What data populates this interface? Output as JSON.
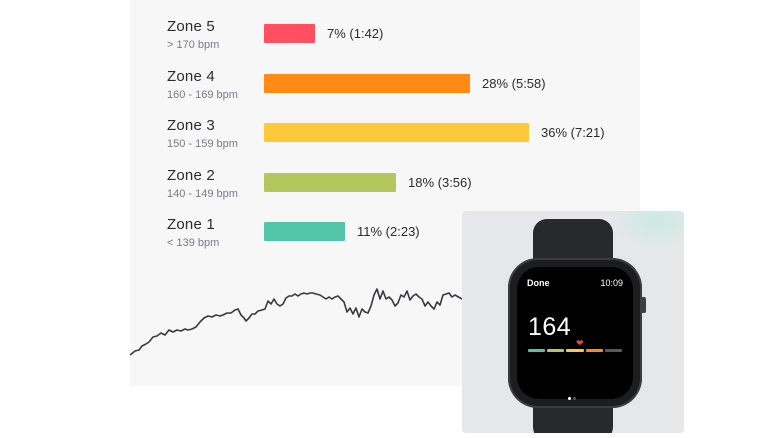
{
  "zones": [
    {
      "name": "Zone 5",
      "range": "> 170 bpm",
      "label": "7% (1:42)",
      "percent": 7,
      "color": "#ff4f60"
    },
    {
      "name": "Zone 4",
      "range": "160 - 169 bpm",
      "label": "28% (5:58)",
      "percent": 28,
      "color": "#ff8a14"
    },
    {
      "name": "Zone 3",
      "range": "150 - 159 bpm",
      "label": "36% (7:21)",
      "percent": 36,
      "color": "#fcc93a"
    },
    {
      "name": "Zone 2",
      "range": "140 - 149 bpm",
      "label": "18% (3:56)",
      "percent": 18,
      "color": "#b4c75c"
    },
    {
      "name": "Zone 1",
      "range": "< 139 bpm",
      "label": "11% (2:23)",
      "percent": 11,
      "color": "#52c5a8"
    }
  ],
  "watch": {
    "done_label": "Done",
    "time": "10:09",
    "heart_rate": "164",
    "heart_icon": "heart-icon",
    "zone_colors": [
      "#52c5a8",
      "#b4c75c",
      "#fcc93a",
      "#ff8a14",
      "#5a5a5e"
    ]
  }
}
